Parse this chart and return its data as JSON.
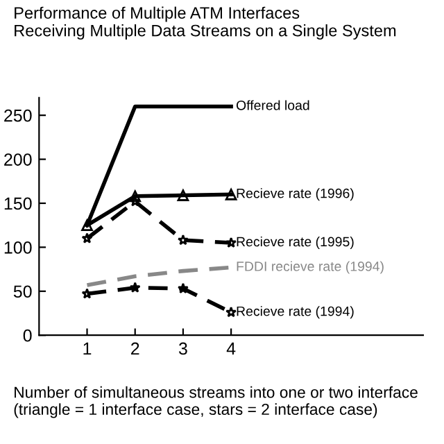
{
  "chart_data": {
    "type": "line",
    "title": "Performance of Multiple ATM Interfaces\nReceiving Multiple Data Streams on a Single System",
    "xlabel": "Number of simultaneous streams into one or two interface\n(triangle = 1 interface case, stars = 2 interface case)",
    "x": [
      1,
      2,
      3,
      4
    ],
    "series": [
      {
        "name": "Offered load",
        "color": "#000000",
        "values": [
          125,
          260,
          260,
          260
        ],
        "line_style": "solid",
        "marker": "none"
      },
      {
        "name": "Recieve rate (1996)",
        "color": "#000000",
        "values": [
          125,
          158,
          159,
          160
        ],
        "line_style": "solid",
        "marker": "triangle"
      },
      {
        "name": "Recieve rate (1995)",
        "color": "#000000",
        "values": [
          110,
          152,
          108,
          105
        ],
        "line_style": "dashed",
        "marker": "star"
      },
      {
        "name": "FDDI recieve rate (1994)",
        "color": "#888888",
        "values": [
          57,
          67,
          73,
          77
        ],
        "line_style": "dashed",
        "marker": "none"
      },
      {
        "name": "Recieve rate (1994)",
        "color": "#000000",
        "values": [
          47,
          54,
          53,
          26
        ],
        "line_style": "dashed",
        "marker": "star"
      }
    ],
    "xlim": [
      0,
      8
    ],
    "ylim": [
      0,
      270
    ],
    "xticks": [
      1,
      2,
      3,
      4
    ],
    "yticks": [
      0,
      50,
      100,
      150,
      200,
      250
    ],
    "grid": false,
    "legend": false
  }
}
